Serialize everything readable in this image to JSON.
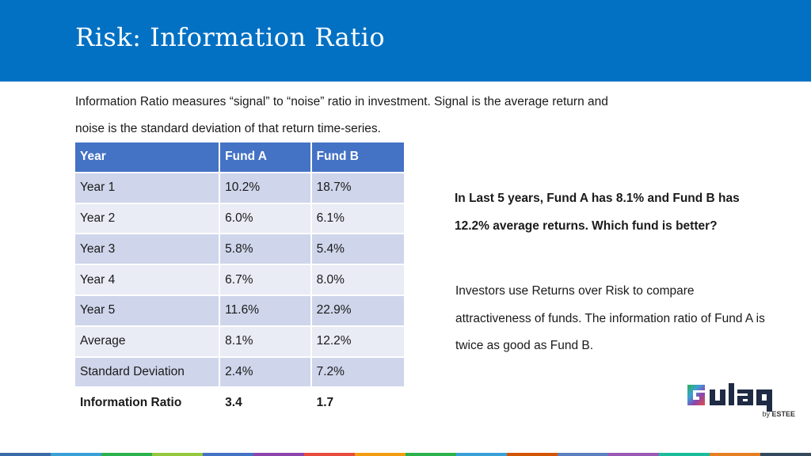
{
  "header": {
    "title": "Risk: Information Ratio"
  },
  "intro": {
    "text": "Information Ratio measures “signal” to “noise” ratio in investment. Signal is the average return and noise is the standard deviation of that return time-series."
  },
  "table": {
    "headers": [
      "Year",
      "Fund A",
      "Fund B"
    ],
    "rows": [
      [
        "Year 1",
        "10.2%",
        "18.7%"
      ],
      [
        "Year 2",
        "6.0%",
        "6.1%"
      ],
      [
        "Year 3",
        "5.8%",
        "5.4%"
      ],
      [
        "Year 4",
        "6.7%",
        "8.0%"
      ],
      [
        "Year 5",
        "11.6%",
        "22.9%"
      ],
      [
        "Average",
        "8.1%",
        "12.2%"
      ],
      [
        "Standard Deviation",
        "2.4%",
        "7.2%"
      ],
      [
        "Information Ratio",
        "3.4",
        "1.7"
      ]
    ]
  },
  "question": {
    "text": "In Last 5 years, Fund A has 8.1% and Fund B has 12.2% average returns. Which fund is better?"
  },
  "answer": {
    "text": "Investors use Returns over Risk to compare attractiveness of funds. The information ratio of Fund A is twice as good as Fund B."
  },
  "logo": {
    "name": "Gulaq",
    "by": "by",
    "brand": "ESTEE"
  },
  "colors": {
    "header": "#0271c4",
    "table_header": "#4472c4",
    "footer": [
      "#3a6aa8",
      "#3aa0d8",
      "#2bb24c",
      "#94c83d",
      "#4472c4",
      "#8e44ad",
      "#e74c3c",
      "#f39c12",
      "#2bb24c",
      "#3aa0d8",
      "#d35400",
      "#5b7fbf",
      "#9b59b6",
      "#1abc9c",
      "#e67e22",
      "#34495e"
    ]
  }
}
